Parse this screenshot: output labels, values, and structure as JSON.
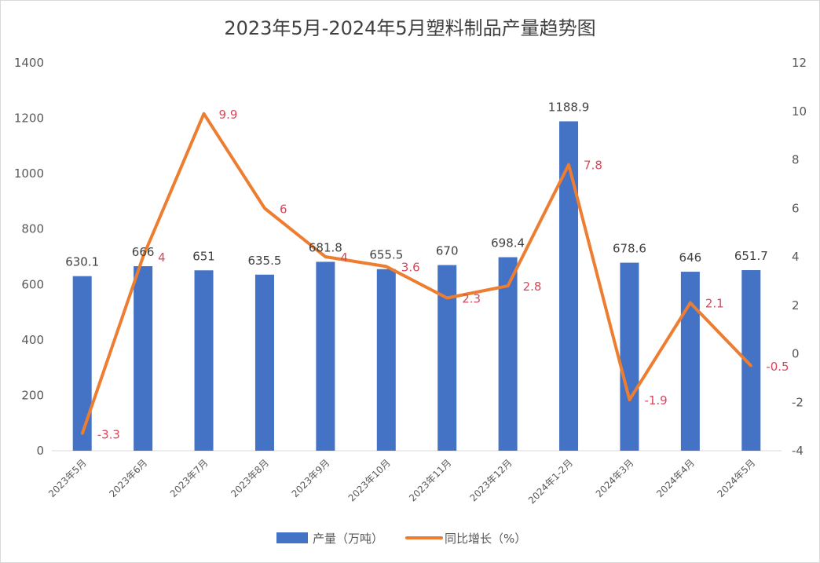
{
  "chart_data": {
    "type": "bar+line",
    "title": "2023年5月-2024年5月塑料制品产量趋势图",
    "categories": [
      "2023年5月",
      "2023年6月",
      "2023年7月",
      "2023年8月",
      "2023年9月",
      "2023年10月",
      "2023年11月",
      "2023年12月",
      "2024年1-2月",
      "2024年3月",
      "2024年4月",
      "2024年5月"
    ],
    "series": [
      {
        "name": "产量（万吨）",
        "type": "bar",
        "axis": "left",
        "color": "#4472C4",
        "values": [
          630.1,
          666,
          651,
          635.5,
          681.8,
          655.5,
          670,
          698.4,
          1188.9,
          678.6,
          646,
          651.7
        ],
        "labels": [
          "630.1",
          "666",
          "651",
          "635.5",
          "681.8",
          "655.5",
          "670",
          "698.4",
          "1188.9",
          "678.6",
          "646",
          "651.7"
        ]
      },
      {
        "name": "同比增长（%）",
        "type": "line",
        "axis": "right",
        "color": "#ED7D31",
        "label_color": "#D9485A",
        "values": [
          -3.3,
          4,
          9.9,
          6,
          4,
          3.6,
          2.3,
          2.8,
          7.8,
          -1.9,
          2.1,
          -0.5
        ],
        "labels": [
          "-3.3",
          "4",
          "9.9",
          "6",
          "4",
          "3.6",
          "2.3",
          "2.8",
          "7.8",
          "-1.9",
          "2.1",
          "-0.5"
        ]
      }
    ],
    "y_left": {
      "range": [
        0,
        1400
      ],
      "ticks": [
        "0",
        "200",
        "400",
        "600",
        "800",
        "1000",
        "1200",
        "1400"
      ]
    },
    "y_right": {
      "range": [
        -4,
        12
      ],
      "ticks": [
        "-4",
        "-2",
        "0",
        "2",
        "4",
        "6",
        "8",
        "10",
        "12"
      ]
    },
    "grid": false,
    "legend": "bottom"
  }
}
